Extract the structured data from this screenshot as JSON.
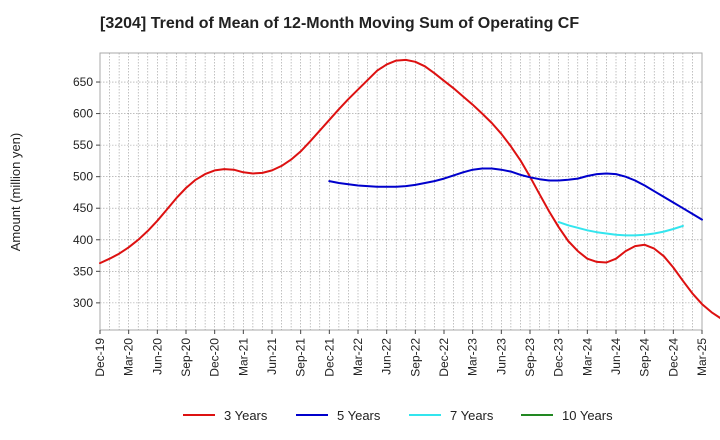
{
  "chart_data": {
    "type": "line",
    "title": "[3204]  Trend of Mean of 12-Month Moving Sum of Operating CF",
    "xlabel": "",
    "ylabel": "Amount (million yen)",
    "x_ticks": [
      "Dec-19",
      "Mar-20",
      "Jun-20",
      "Sep-20",
      "Dec-20",
      "Mar-21",
      "Jun-21",
      "Sep-21",
      "Dec-21",
      "Mar-22",
      "Jun-22",
      "Sep-22",
      "Dec-22",
      "Mar-23",
      "Jun-23",
      "Sep-23",
      "Dec-23",
      "Mar-24",
      "Jun-24",
      "Sep-24",
      "Dec-24",
      "Mar-25"
    ],
    "x_tick_step_months": 3,
    "y_ticks": [
      300,
      350,
      400,
      450,
      500,
      550,
      600,
      650
    ],
    "ylim": [
      257,
      696
    ],
    "grid": true,
    "legend_position": "bottom",
    "series": [
      {
        "name": "3 Years",
        "color": "#dd1111",
        "start_index": 0,
        "values": [
          363,
          370,
          378,
          388,
          400,
          414,
          430,
          448,
          466,
          482,
          495,
          504,
          510,
          512,
          511,
          507,
          505,
          506,
          510,
          517,
          527,
          540,
          556,
          573,
          590,
          607,
          623,
          638,
          653,
          668,
          678,
          684,
          685,
          682,
          675,
          664,
          652,
          640,
          627,
          614,
          600,
          585,
          568,
          548,
          526,
          500,
          472,
          445,
          420,
          398,
          382,
          370,
          365,
          364,
          370,
          382,
          390,
          392,
          386,
          374,
          356,
          335,
          315,
          298,
          285,
          275,
          269,
          266
        ]
      },
      {
        "name": "5 Years",
        "color": "#0000cc",
        "start_index": 24,
        "values": [
          493,
          490,
          488,
          486,
          485,
          484,
          484,
          484,
          485,
          487,
          490,
          493,
          497,
          502,
          507,
          511,
          513,
          513,
          511,
          508,
          503,
          499,
          496,
          494,
          494,
          495,
          497,
          501,
          504,
          505,
          504,
          500,
          494,
          486,
          477,
          468,
          459,
          450,
          441,
          432
        ]
      },
      {
        "name": "7 Years",
        "color": "#33e5ee",
        "start_index": 48,
        "values": [
          428,
          423,
          419,
          415,
          412,
          410,
          408,
          407,
          407,
          408,
          410,
          413,
          417,
          422
        ]
      },
      {
        "name": "10 Years",
        "color": "#228822",
        "start_index": 0,
        "values": []
      }
    ]
  }
}
